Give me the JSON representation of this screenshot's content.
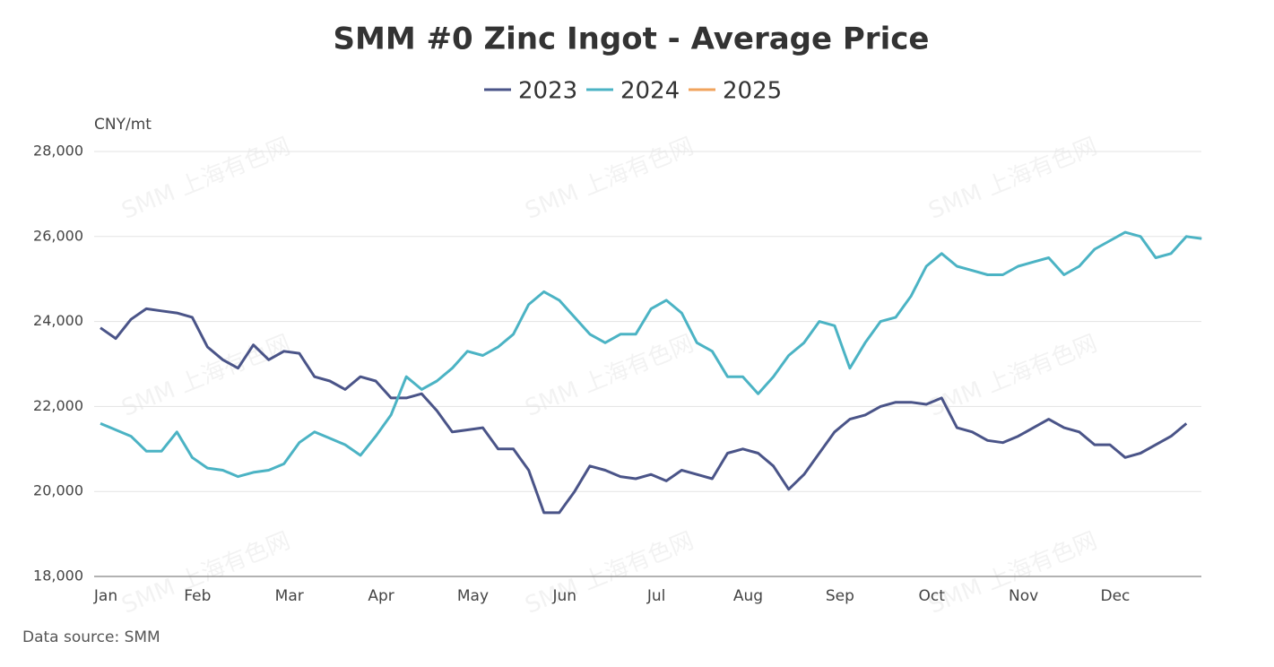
{
  "chart_data": {
    "type": "line",
    "title": "SMM #0 Zinc Ingot - Average Price",
    "y_axis_label": "CNY/mt",
    "source": "Data source:  SMM",
    "watermark": "SMM 上海有色网",
    "categories": [
      "Jan",
      null,
      null,
      null,
      null,
      null,
      "Feb",
      null,
      null,
      null,
      null,
      null,
      "Mar",
      null,
      null,
      null,
      null,
      null,
      "Apr",
      null,
      null,
      null,
      null,
      null,
      "May",
      null,
      null,
      null,
      null,
      null,
      "Jun",
      null,
      null,
      null,
      null,
      null,
      "Jul",
      null,
      null,
      null,
      null,
      null,
      "Aug",
      null,
      null,
      null,
      null,
      null,
      "Sep",
      null,
      null,
      null,
      null,
      null,
      "Oct",
      null,
      null,
      null,
      null,
      null,
      "Nov",
      null,
      null,
      null,
      null,
      null,
      "Dec",
      null,
      null,
      null,
      null,
      null,
      null
    ],
    "series": [
      {
        "name": "2023",
        "color": "#4a5488",
        "values": [
          23850,
          23600,
          24050,
          24300,
          24250,
          24200,
          24100,
          23400,
          23100,
          22900,
          23450,
          23100,
          23300,
          23250,
          22700,
          22600,
          22400,
          22700,
          22600,
          22200,
          22200,
          22300,
          21900,
          21400,
          21450,
          21500,
          21000,
          21000,
          20500,
          19500,
          19500,
          20000,
          20600,
          20500,
          20350,
          20300,
          20400,
          20250,
          20500,
          20400,
          20300,
          20900,
          21000,
          20900,
          20600,
          20050,
          20400,
          20900,
          21400,
          21700,
          21800,
          22000,
          22100,
          22100,
          22050,
          22200,
          21500,
          21400,
          21200,
          21150,
          21300,
          21500,
          21700,
          21500,
          21400,
          21100,
          21100,
          20800,
          20900,
          21100,
          21300,
          21600,
          null
        ]
      },
      {
        "name": "2024",
        "color": "#4bb3c4",
        "values": [
          21600,
          21450,
          21300,
          20950,
          20950,
          21400,
          20800,
          20550,
          20500,
          20350,
          20450,
          20500,
          20650,
          21150,
          21400,
          21250,
          21100,
          20850,
          21300,
          21800,
          22700,
          22400,
          22600,
          22900,
          23300,
          23200,
          23400,
          23700,
          24400,
          24700,
          24500,
          24100,
          23700,
          23500,
          23700,
          23700,
          24300,
          24500,
          24200,
          23500,
          23300,
          22700,
          22700,
          22300,
          22700,
          23200,
          23500,
          24000,
          23900,
          22900,
          23500,
          24000,
          24100,
          24600,
          25300,
          25600,
          25300,
          25200,
          25100,
          25100,
          25300,
          25400,
          25500,
          25100,
          25300,
          25700,
          25900,
          26100,
          26000,
          25500,
          25600,
          26000,
          25950
        ]
      },
      {
        "name": "2025",
        "color": "#f0a35c",
        "values": [
          null,
          null,
          null,
          null,
          null,
          null,
          null,
          null,
          null,
          null,
          null,
          null,
          null,
          null,
          null,
          null,
          null,
          null,
          null,
          null,
          null,
          null,
          null,
          null,
          null,
          null,
          null,
          null,
          null,
          null,
          null,
          null,
          null,
          null,
          null,
          null,
          null,
          null,
          null,
          null,
          null,
          null,
          null,
          null,
          null,
          null,
          null,
          null,
          null,
          null,
          null,
          null,
          null,
          null,
          null,
          null,
          null,
          null,
          null,
          null,
          null,
          null,
          null,
          null,
          null,
          null,
          null,
          null,
          null,
          null,
          null,
          null,
          null
        ]
      }
    ],
    "ylim": [
      18000,
      28000
    ],
    "yticks": [
      {
        "value": 18000,
        "label": "18,000"
      },
      {
        "value": 20000,
        "label": "20,000"
      },
      {
        "value": 22000,
        "label": "22,000"
      },
      {
        "value": 24000,
        "label": "24,000"
      },
      {
        "value": 26000,
        "label": "26,000"
      },
      {
        "value": 28000,
        "label": "28,000"
      }
    ],
    "grid": true
  }
}
